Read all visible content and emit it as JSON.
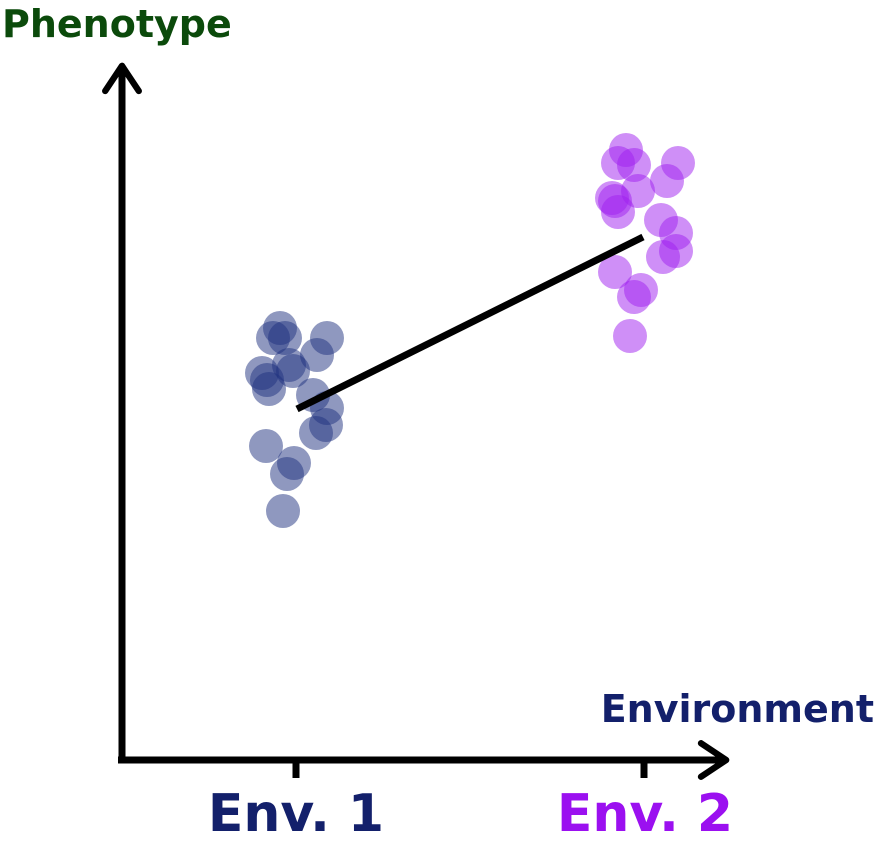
{
  "chart_data": {
    "type": "scatter",
    "title": "",
    "xlabel": "Environment",
    "ylabel": "Phenotype",
    "categories": [
      "Env. 1",
      "Env. 2"
    ],
    "colors": {
      "ylabel": "#0b4a0b",
      "xlabel": "#13206b",
      "env1": "#1f3280",
      "env2": "#a020f0",
      "axis": "#000000"
    },
    "grid": false,
    "legend": "none",
    "series": [
      {
        "category": "Env. 1",
        "points": [
          [
            280,
            328
          ],
          [
            285,
            338
          ],
          [
            273,
            338
          ],
          [
            327,
            338
          ],
          [
            317,
            355
          ],
          [
            289,
            365
          ],
          [
            262,
            373
          ],
          [
            293,
            371
          ],
          [
            267,
            380
          ],
          [
            269,
            389
          ],
          [
            313,
            395
          ],
          [
            327,
            408
          ],
          [
            326,
            425
          ],
          [
            316,
            433
          ],
          [
            266,
            446
          ],
          [
            294,
            463
          ],
          [
            287,
            474
          ],
          [
            283,
            511
          ]
        ]
      },
      {
        "category": "Env. 2",
        "points": [
          [
            626,
            150
          ],
          [
            618,
            163
          ],
          [
            634,
            165
          ],
          [
            678,
            163
          ],
          [
            667,
            181
          ],
          [
            638,
            191
          ],
          [
            615,
            201
          ],
          [
            612,
            198
          ],
          [
            618,
            212
          ],
          [
            661,
            220
          ],
          [
            676,
            233
          ],
          [
            676,
            251
          ],
          [
            663,
            257
          ],
          [
            615,
            272
          ],
          [
            641,
            290
          ],
          [
            634,
            297
          ],
          [
            630,
            336
          ]
        ]
      }
    ],
    "trend_line": [
      [
        297,
        409
      ],
      [
        643,
        237
      ]
    ]
  }
}
